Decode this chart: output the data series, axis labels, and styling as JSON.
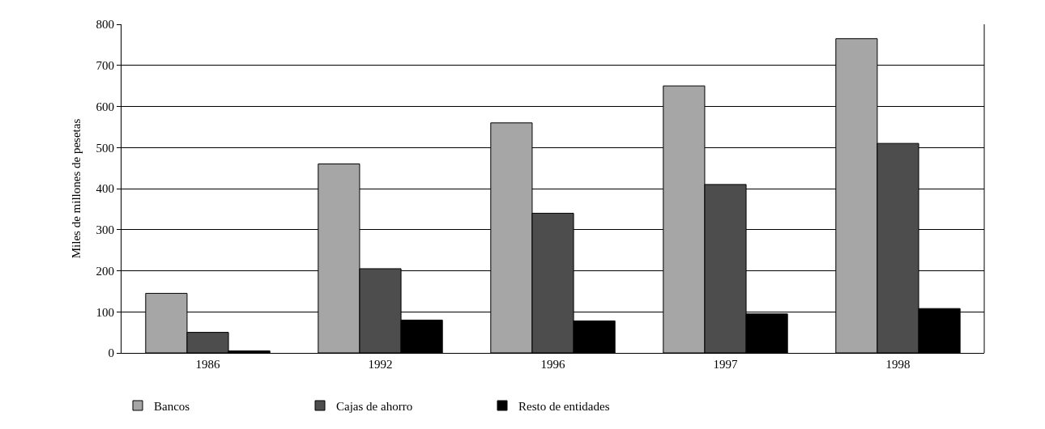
{
  "chart_data": {
    "type": "bar",
    "ylabel": "Miles de millones de pesetas",
    "categories": [
      "1986",
      "1992",
      "1996",
      "1997",
      "1998"
    ],
    "series": [
      {
        "name": "Bancos",
        "color": "#a6a6a6",
        "values": [
          145,
          460,
          560,
          650,
          765
        ]
      },
      {
        "name": "Cajas de ahorro",
        "color": "#4d4d4d",
        "values": [
          50,
          205,
          340,
          410,
          510
        ]
      },
      {
        "name": "Resto de entidades",
        "color": "#000000",
        "values": [
          5,
          80,
          78,
          95,
          108
        ]
      }
    ],
    "ylim": [
      0,
      800
    ],
    "yticks": [
      0,
      100,
      200,
      300,
      400,
      500,
      600,
      700,
      800
    ],
    "grid": "y",
    "legend": "bottom left"
  }
}
